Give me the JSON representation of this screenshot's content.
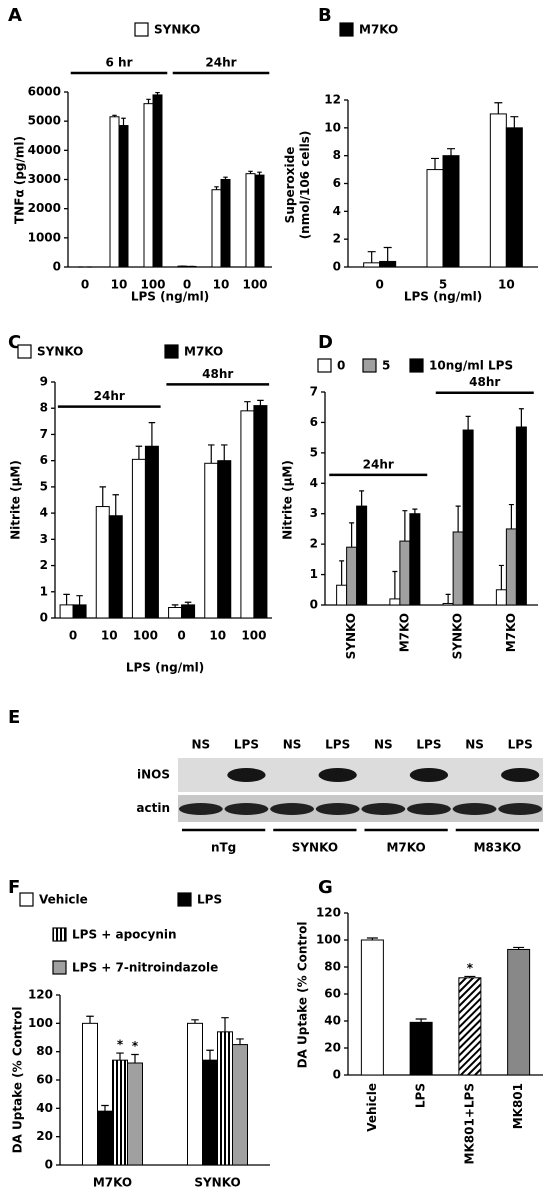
{
  "chart_data": [
    {
      "type": "bar",
      "label": "A",
      "ylabel": [
        "TNFα (pg/ml)"
      ],
      "xlabel": "LPS (ng/ml)",
      "categories": [
        "0",
        "10",
        "100",
        "0",
        "10",
        "100"
      ],
      "groups": [
        {
          "label": "6 hr",
          "start": 0,
          "end": 2
        },
        {
          "label": "24hr",
          "start": 3,
          "end": 5
        }
      ],
      "series": [
        {
          "name": "SYNKO",
          "color": "#ffffff",
          "values": [
            0,
            5150,
            5600,
            30,
            2650,
            3200
          ],
          "errors": [
            0,
            50,
            150,
            0,
            100,
            80
          ]
        },
        {
          "color": "#000000",
          "values": [
            0,
            4850,
            5900,
            20,
            3000,
            3150
          ],
          "errors": [
            0,
            250,
            80,
            0,
            80,
            100
          ]
        }
      ],
      "ylim": [
        0,
        6000
      ],
      "yticks": [
        0,
        1000,
        2000,
        3000,
        4000,
        5000,
        6000
      ]
    },
    {
      "type": "bar",
      "label": "B",
      "ylabel": [
        "Superoxide",
        "(nmol/106 cells)"
      ],
      "xlabel": "LPS (ng/ml)",
      "categories": [
        "0",
        "5",
        "10"
      ],
      "series": [
        {
          "color": "#ffffff",
          "values": [
            0.3,
            7,
            11
          ],
          "errors": [
            0.8,
            0.8,
            0.8
          ]
        },
        {
          "name": "M7KO",
          "color": "#000000",
          "values": [
            0.4,
            8,
            10
          ],
          "errors": [
            1,
            0.5,
            0.8
          ]
        }
      ],
      "ylim": [
        0,
        12
      ],
      "yticks": [
        0,
        2,
        4,
        6,
        8,
        10,
        12
      ]
    },
    {
      "type": "bar",
      "label": "C",
      "ylabel": [
        "Nitrite (μM)"
      ],
      "xlabel": "LPS (ng/ml)",
      "categories": [
        "0",
        "10",
        "100",
        "0",
        "10",
        "100"
      ],
      "groups": [
        {
          "label": "24hr",
          "start": 0,
          "end": 2
        },
        {
          "label": "48hr",
          "start": 3,
          "end": 5
        }
      ],
      "series": [
        {
          "name": "SYNKO",
          "color": "#ffffff",
          "values": [
            0.5,
            4.25,
            6.05,
            0.4,
            5.9,
            7.9
          ],
          "errors": [
            0.4,
            0.75,
            0.5,
            0.1,
            0.7,
            0.35
          ]
        },
        {
          "name": "M7KO",
          "color": "#000000",
          "values": [
            0.5,
            3.9,
            6.55,
            0.5,
            6.0,
            8.1
          ],
          "errors": [
            0.35,
            0.8,
            0.9,
            0.1,
            0.6,
            0.2
          ]
        }
      ],
      "ylim": [
        0,
        9
      ],
      "yticks": [
        0,
        1,
        2,
        3,
        4,
        5,
        6,
        7,
        8,
        9
      ]
    },
    {
      "type": "bar",
      "label": "D",
      "ylabel": [
        "Nitrite (μM)"
      ],
      "categories": [
        "SYNKO",
        "M7KO",
        "SYNKO",
        "M7KO"
      ],
      "groups": [
        {
          "label": "24hr",
          "start": 0,
          "end": 1
        },
        {
          "label": "48hr",
          "start": 2,
          "end": 3
        }
      ],
      "series": [
        {
          "name": "0",
          "color": "#ffffff",
          "values": [
            0.65,
            0.2,
            0.05,
            0.5
          ],
          "errors": [
            0.8,
            0.9,
            0.3,
            0.8
          ]
        },
        {
          "name": "5",
          "color": "#a0a0a0",
          "values": [
            1.9,
            2.1,
            2.4,
            2.5
          ],
          "errors": [
            0.8,
            1.0,
            0.85,
            0.8
          ]
        },
        {
          "name": "10ng/ml LPS",
          "color": "#000000",
          "values": [
            3.25,
            3.0,
            5.75,
            5.85
          ],
          "errors": [
            0.5,
            0.15,
            0.45,
            0.6
          ]
        }
      ],
      "ylim": [
        0,
        7
      ],
      "yticks": [
        0,
        1,
        2,
        3,
        4,
        5,
        6,
        7
      ]
    },
    {
      "type": "bar",
      "label": "F",
      "ylabel": [
        "DA Uptake (% Control"
      ],
      "categories": [
        "M7KO",
        "SYNKO"
      ],
      "series": [
        {
          "name": "Vehicle",
          "color": "#ffffff",
          "values": [
            100,
            100
          ],
          "errors": [
            5,
            2.5
          ]
        },
        {
          "name": "LPS",
          "color": "#000000",
          "values": [
            38,
            74
          ],
          "errors": [
            4,
            7
          ]
        },
        {
          "name": "LPS + apocynin",
          "color": "#ffffff",
          "hatch": "vertical",
          "values": [
            74,
            94
          ],
          "errors": [
            5,
            10
          ]
        },
        {
          "name": "LPS + 7-nitroindazole",
          "color": "#a0a0a0",
          "values": [
            72,
            85
          ],
          "errors": [
            6,
            4
          ]
        }
      ],
      "annotations": [
        {
          "text": "*",
          "series": 2,
          "index": 0
        },
        {
          "text": "*",
          "series": 3,
          "index": 0
        }
      ],
      "ylim": [
        0,
        120
      ],
      "yticks": [
        0,
        20,
        40,
        60,
        80,
        100,
        120
      ]
    },
    {
      "type": "bar",
      "label": "G",
      "ylabel": [
        "DA Uptake (% Control"
      ],
      "categories": [
        "Vehicle",
        "LPS",
        "MK801+LPS",
        "MK801"
      ],
      "series": [
        {
          "colors": [
            "#ffffff",
            "#000000",
            "#ffffff",
            "#888888"
          ],
          "hatches": [
            null,
            null,
            "diagonal",
            null
          ],
          "values": [
            100,
            39,
            72,
            93
          ],
          "errors": [
            1.5,
            2.5,
            1,
            1.5
          ]
        }
      ],
      "annotations": [
        {
          "text": "*",
          "series": 0,
          "index": 2
        }
      ],
      "ylim": [
        0,
        120
      ],
      "yticks": [
        0,
        20,
        40,
        60,
        80,
        100,
        120
      ]
    }
  ],
  "blot": {
    "label": "E",
    "lanes": [
      "NS",
      "LPS",
      "NS",
      "LPS",
      "NS",
      "LPS",
      "NS",
      "LPS"
    ],
    "rows": [
      "iNOS",
      "actin"
    ],
    "groups": [
      "nTg",
      "SYNKO",
      "M7KO",
      "M83KO"
    ]
  }
}
